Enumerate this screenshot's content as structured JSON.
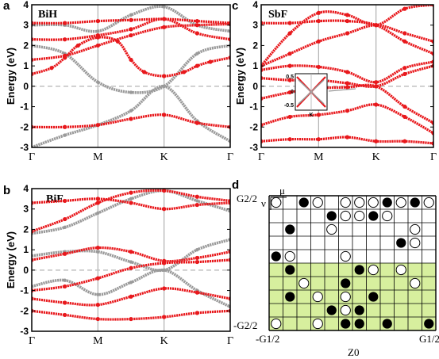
{
  "chart_data": [
    {
      "type": "line",
      "panel": "a",
      "material": "BiH",
      "ylabel": "Energy (eV)",
      "ylim": [
        -3,
        4
      ],
      "yticks": [
        "-3",
        "-2",
        "-1",
        "0",
        "1",
        "2",
        "3",
        "4"
      ],
      "kpoints": [
        "Γ",
        "M",
        "K",
        "Γ"
      ],
      "bands": [
        {
          "style": "red",
          "x": [
            0,
            0.3,
            0.5,
            0.7,
            1,
            1.3,
            1.5,
            1.7,
            2,
            2.3,
            2.5,
            2.7,
            3
          ],
          "y": [
            0.6,
            0.9,
            1.4,
            2.0,
            2.4,
            2.2,
            1.3,
            0.7,
            0.5,
            0.7,
            1.0,
            1.2,
            1.4
          ]
        },
        {
          "style": "red",
          "x": [
            0,
            0.5,
            1,
            1.5,
            2,
            2.5,
            3
          ],
          "y": [
            -2.0,
            -2.0,
            -1.9,
            -1.6,
            -1.4,
            -1.8,
            -2.0
          ]
        },
        {
          "style": "red",
          "x": [
            0,
            0.5,
            1,
            1.5,
            2,
            2.5,
            3
          ],
          "y": [
            1.3,
            1.5,
            2.0,
            2.5,
            2.9,
            3.0,
            3.05
          ]
        },
        {
          "style": "red",
          "x": [
            0,
            0.5,
            1,
            1.5,
            2,
            2.5,
            3
          ],
          "y": [
            3.1,
            3.1,
            3.2,
            3.25,
            3.3,
            3.2,
            3.1
          ]
        },
        {
          "style": "red",
          "x": [
            0,
            0.5,
            1,
            1.5,
            2,
            2.5,
            3
          ],
          "y": [
            2.3,
            2.3,
            2.5,
            2.8,
            3.3,
            2.6,
            2.3
          ]
        },
        {
          "style": "gray",
          "x": [
            0,
            0.5,
            1,
            1.5,
            2,
            2.5,
            3
          ],
          "y": [
            -3.0,
            -2.4,
            -1.9,
            -1.2,
            0,
            -1.7,
            -2.7
          ]
        },
        {
          "style": "gray",
          "x": [
            0,
            0.5,
            1,
            1.5,
            2,
            2.5,
            3
          ],
          "y": [
            2.0,
            1.6,
            0.2,
            -0.3,
            0,
            1.6,
            2.0
          ]
        },
        {
          "style": "gray",
          "x": [
            0,
            0.5,
            1,
            1.5,
            2,
            2.5,
            3
          ],
          "y": [
            3.0,
            3.0,
            2.7,
            3.5,
            3.9,
            3.0,
            2.7
          ]
        }
      ]
    },
    {
      "type": "line",
      "panel": "b",
      "material": "BiF",
      "ylabel": "Energy (eV)",
      "ylim": [
        -3,
        4
      ],
      "yticks": [
        "-3",
        "-2",
        "-1",
        "0",
        "1",
        "2",
        "3",
        "4"
      ],
      "kpoints": [
        "Γ",
        "M",
        "K",
        "Γ"
      ],
      "bands": [
        {
          "style": "red",
          "x": [
            0,
            0.5,
            1,
            1.5,
            2,
            2.5,
            3
          ],
          "y": [
            -1.0,
            -0.8,
            -0.4,
            0.1,
            0.35,
            0.4,
            0.5
          ]
        },
        {
          "style": "red",
          "x": [
            0,
            0.5,
            1,
            1.5,
            2,
            2.5,
            3
          ],
          "y": [
            0.5,
            0.8,
            1.1,
            0.9,
            0.45,
            0.6,
            0.9
          ]
        },
        {
          "style": "red",
          "x": [
            0,
            0.5,
            1,
            1.5,
            2,
            2.5,
            3
          ],
          "y": [
            -2.0,
            -2.2,
            -2.4,
            -2.4,
            -2.3,
            -2.1,
            -2.0
          ]
        },
        {
          "style": "red",
          "x": [
            0,
            0.5,
            1,
            1.5,
            2,
            2.5,
            3
          ],
          "y": [
            -1.4,
            -1.6,
            -1.7,
            -1.3,
            -0.9,
            -1.1,
            -1.4
          ]
        },
        {
          "style": "red",
          "x": [
            0,
            0.5,
            1,
            1.5,
            2,
            2.5,
            3
          ],
          "y": [
            1.9,
            2.5,
            3.3,
            3.8,
            3.9,
            3.6,
            3.4
          ]
        },
        {
          "style": "red",
          "x": [
            0,
            0.5,
            1,
            1.5,
            2,
            2.5,
            3
          ],
          "y": [
            3.3,
            3.4,
            3.5,
            3.3,
            3.0,
            3.2,
            3.3
          ]
        },
        {
          "style": "gray",
          "x": [
            0,
            0.5,
            1,
            1.5,
            2,
            2.5,
            3
          ],
          "y": [
            -0.8,
            -0.5,
            -1.2,
            -0.6,
            0,
            -1.0,
            -1.8
          ]
        },
        {
          "style": "gray",
          "x": [
            0,
            0.5,
            1,
            1.5,
            2,
            2.5,
            3
          ],
          "y": [
            0.7,
            0.9,
            0.9,
            0.4,
            0,
            1.0,
            1.5
          ]
        },
        {
          "style": "gray",
          "x": [
            0,
            0.5,
            1,
            1.5,
            2,
            2.5,
            3
          ],
          "y": [
            1.8,
            2.1,
            2.8,
            3.5,
            3.9,
            3.4,
            2.9
          ]
        }
      ]
    },
    {
      "type": "line",
      "panel": "c",
      "material": "SbF",
      "ylabel": "Energy (eV)",
      "ylim": [
        -3,
        4
      ],
      "yticks": [
        "-3",
        "-2",
        "-1",
        "0",
        "1",
        "2",
        "3",
        "4"
      ],
      "kpoints": [
        "Γ",
        "M",
        "K",
        "Γ"
      ],
      "bands": [
        {
          "style": "red",
          "x": [
            0,
            0.5,
            1,
            1.5,
            2,
            2.5,
            3
          ],
          "y": [
            1.0,
            1.6,
            2.2,
            2.6,
            3.0,
            2.6,
            2.2
          ]
        },
        {
          "style": "red",
          "x": [
            0,
            0.5,
            1,
            1.5,
            2,
            2.5,
            3
          ],
          "y": [
            3.1,
            3.1,
            3.2,
            3.2,
            3.0,
            2.2,
            1.6
          ]
        },
        {
          "style": "red",
          "x": [
            0,
            0.5,
            1,
            1.5,
            2,
            2.5,
            3
          ],
          "y": [
            1.0,
            2.6,
            3.6,
            3.5,
            3.0,
            3.8,
            4.0
          ]
        },
        {
          "style": "red",
          "x": [
            0,
            0.5,
            1,
            1.5,
            2,
            2.5,
            3
          ],
          "y": [
            0.8,
            1.0,
            0.95,
            0.7,
            0.2,
            0.9,
            1.2
          ]
        },
        {
          "style": "red",
          "x": [
            0,
            0.5,
            1,
            1.5,
            2,
            2.5,
            3
          ],
          "y": [
            -0.6,
            -0.3,
            -0.1,
            -0.05,
            0,
            -1.0,
            -1.8
          ]
        },
        {
          "style": "red",
          "x": [
            0,
            0.5,
            1,
            1.5,
            2,
            2.5,
            3
          ],
          "y": [
            0.4,
            0.3,
            0.3,
            0.15,
            0,
            0.6,
            1.0
          ]
        },
        {
          "style": "red",
          "x": [
            0,
            0.5,
            1,
            1.5,
            2,
            2.5,
            3
          ],
          "y": [
            -1.9,
            -1.5,
            -1.4,
            -1.2,
            -0.9,
            -1.5,
            -2.3
          ]
        },
        {
          "style": "red",
          "x": [
            0,
            0.5,
            1,
            1.5,
            2,
            2.5,
            3
          ],
          "y": [
            -2.7,
            -2.6,
            -2.6,
            -2.5,
            -2.7,
            -2.7,
            -2.8
          ]
        }
      ],
      "inset": {
        "yticks": [
          "0.5",
          "0",
          "-0.5"
        ],
        "xtick": "K"
      }
    }
  ],
  "panel_d": {
    "label": "d",
    "ylabel_top": "G2/2",
    "ylabel_bottom": "-G2/2",
    "xlabel_left": "-G1/2",
    "xlabel_right": "G1/2",
    "xlabel_center": "Z0",
    "mu": "μ",
    "nu": "ν",
    "columns": 12,
    "rows": 10,
    "shaded_from_row": 5,
    "shade_color": "#d7ef9e",
    "filled_cells": [
      [
        0,
        2
      ],
      [
        0,
        8
      ],
      [
        0,
        10
      ],
      [
        1,
        4
      ],
      [
        1,
        7
      ],
      [
        2,
        1
      ],
      [
        3,
        9
      ],
      [
        4,
        0
      ],
      [
        5,
        1
      ],
      [
        5,
        6
      ],
      [
        6,
        5
      ],
      [
        7,
        1
      ],
      [
        7,
        7
      ],
      [
        8,
        4
      ],
      [
        8,
        6
      ],
      [
        9,
        5
      ],
      [
        9,
        6
      ],
      [
        9,
        8
      ],
      [
        9,
        11
      ]
    ],
    "open_cells": [
      [
        0,
        0
      ],
      [
        0,
        3
      ],
      [
        0,
        5
      ],
      [
        0,
        6
      ],
      [
        0,
        7
      ],
      [
        0,
        9
      ],
      [
        0,
        11
      ],
      [
        1,
        5
      ],
      [
        1,
        6
      ],
      [
        1,
        8
      ],
      [
        2,
        4
      ],
      [
        2,
        10
      ],
      [
        3,
        10
      ],
      [
        4,
        1
      ],
      [
        4,
        5
      ],
      [
        5,
        7
      ],
      [
        5,
        9
      ],
      [
        6,
        2
      ],
      [
        6,
        10
      ],
      [
        7,
        3
      ],
      [
        7,
        5
      ],
      [
        8,
        5
      ],
      [
        9,
        0
      ],
      [
        9,
        3
      ]
    ]
  },
  "colors": {
    "band_red": "#e8181c",
    "band_gray": "#9a9a9a",
    "frame": "#000000",
    "fermi": "#c0c0c0",
    "kline": "#b0b0b0"
  }
}
